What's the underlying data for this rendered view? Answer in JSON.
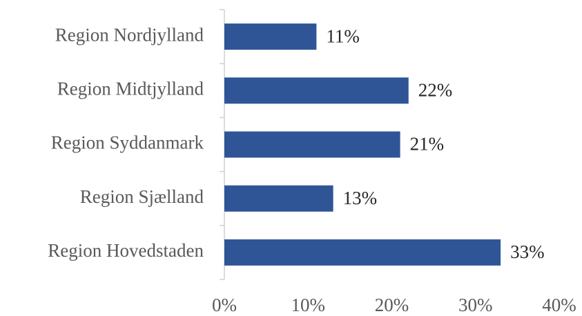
{
  "chart_data": {
    "type": "bar",
    "orientation": "horizontal",
    "categories": [
      "Region Nordjylland",
      "Region Midtjylland",
      "Region Syddanmark",
      "Region Sjælland",
      "Region Hovedstaden"
    ],
    "values": [
      11,
      22,
      21,
      13,
      33
    ],
    "value_labels": [
      "11%",
      "22%",
      "21%",
      "13%",
      "33%"
    ],
    "color": "#2f5597",
    "xlim": [
      0,
      40
    ],
    "xticks": [
      {
        "value": 0,
        "label": "0%"
      },
      {
        "value": 10,
        "label": "10%"
      },
      {
        "value": 20,
        "label": "20%"
      },
      {
        "value": 30,
        "label": "30%"
      },
      {
        "value": 40,
        "label": "40%"
      }
    ],
    "grid": false
  }
}
